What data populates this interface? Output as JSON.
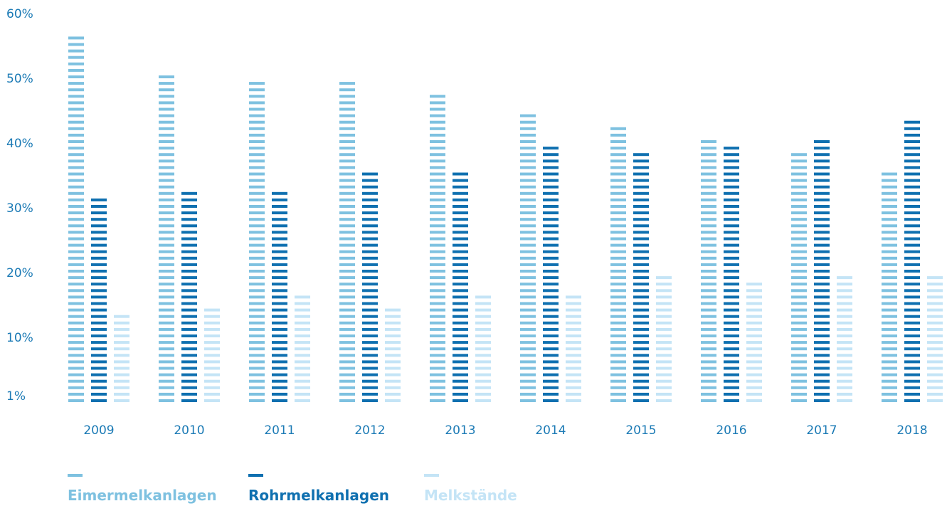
{
  "chart_data": {
    "type": "bar",
    "categories": [
      "2009",
      "2010",
      "2011",
      "2012",
      "2013",
      "2014",
      "2015",
      "2016",
      "2017",
      "2018"
    ],
    "series": [
      {
        "name": "Eimermelkanlagen",
        "color": "#7ec1e0",
        "values": [
          56.5,
          50.5,
          49.5,
          49.5,
          47.5,
          44.5,
          42.5,
          40.5,
          38.5,
          35.5
        ]
      },
      {
        "name": "Rohrmelkanlagen",
        "color": "#0f70b0",
        "values": [
          31.5,
          32.5,
          32.5,
          35.5,
          35.5,
          39.5,
          38.5,
          39.5,
          40.5,
          43.5
        ]
      },
      {
        "name": "Melkstände",
        "color": "#c4e4f6",
        "values": [
          13.5,
          15.5,
          16.5,
          15.5,
          16.5,
          16.5,
          19.5,
          18.5,
          19.5,
          19.5
        ]
      }
    ],
    "y_ticks": [
      "1%",
      "10%",
      "20%",
      "30%",
      "40%",
      "50%",
      "60%"
    ],
    "ylim": [
      0,
      60
    ],
    "legend_position": "bottom-left",
    "bar_style": "striped"
  },
  "legend": {
    "items": [
      {
        "label": "Eimermelkanlagen"
      },
      {
        "label": "Rohrmelkanlagen"
      },
      {
        "label": "Melkstände"
      }
    ]
  }
}
